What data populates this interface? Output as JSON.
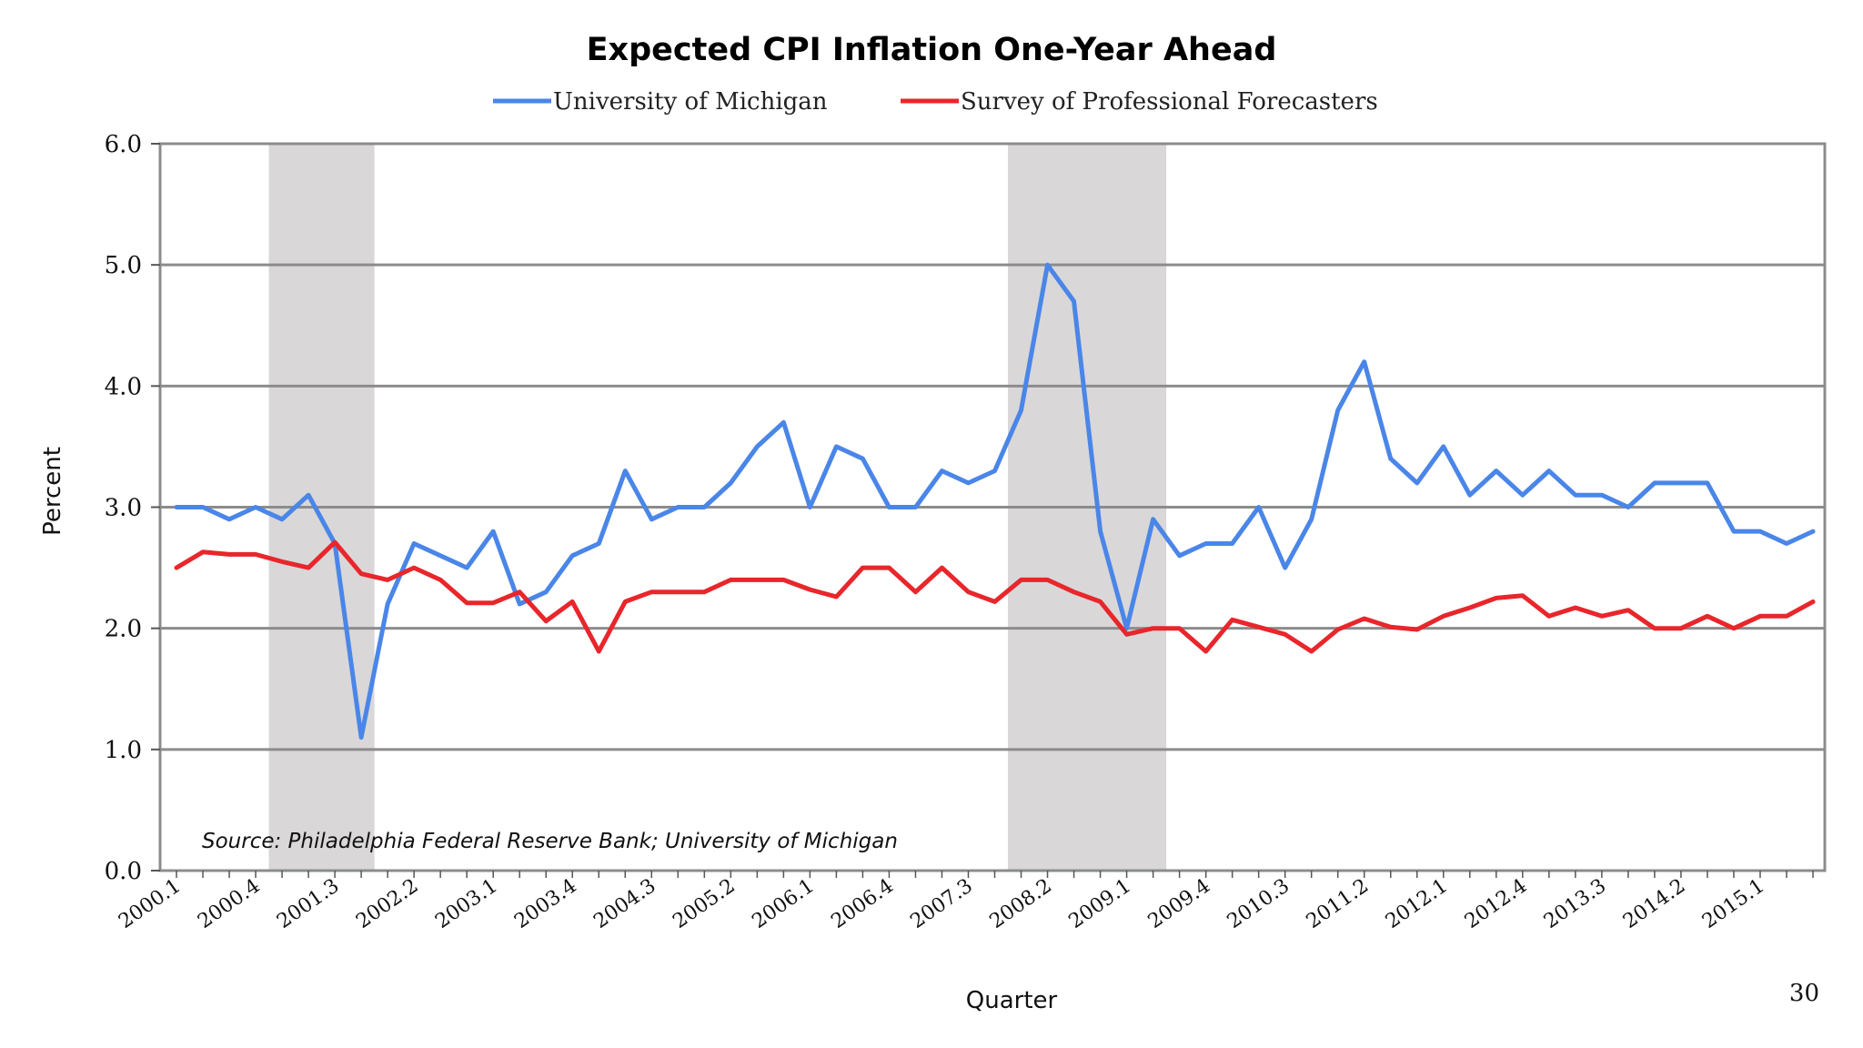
{
  "chart_data": {
    "type": "line",
    "title": "Expected CPI Inflation One-Year Ahead",
    "xlabel": "Quarter",
    "ylabel": "Percent",
    "ylim": [
      0,
      6
    ],
    "yticks": [
      "0.0",
      "1.0",
      "2.0",
      "3.0",
      "4.0",
      "5.0",
      "6.0"
    ],
    "x_tick_labels": [
      "2000.1",
      "2000.4",
      "2001.3",
      "2002.2",
      "2003.1",
      "2003.4",
      "2004.3",
      "2005.2",
      "2006.1",
      "2006.4",
      "2007.3",
      "2008.2",
      "2009.1",
      "2009.4",
      "2010.3",
      "2011.2",
      "2012.1",
      "2012.4",
      "2013.3",
      "2014.2",
      "2015.1"
    ],
    "legend": "top",
    "grid": true,
    "recessions": [
      {
        "start": "2001.1",
        "end": "2001.4"
      },
      {
        "start": "2008.1",
        "end": "2009.2"
      }
    ],
    "annotation": "Source: Philadelphia Federal Reserve Bank; University of Michigan",
    "series": [
      {
        "name": "University of Michigan",
        "color": "#4a86e8",
        "values": [
          3.0,
          3.0,
          2.9,
          3.0,
          2.9,
          3.1,
          2.7,
          1.1,
          2.2,
          2.7,
          2.6,
          2.5,
          2.8,
          2.2,
          2.3,
          2.6,
          2.7,
          3.3,
          2.9,
          3.0,
          3.0,
          3.2,
          3.5,
          3.7,
          3.0,
          3.5,
          3.4,
          3.0,
          3.0,
          3.3,
          3.2,
          3.3,
          3.8,
          5.0,
          4.7,
          2.8,
          2.0,
          2.9,
          2.6,
          2.7,
          2.7,
          3.0,
          2.5,
          2.9,
          3.8,
          4.2,
          3.4,
          3.2,
          3.5,
          3.1,
          3.3,
          3.1,
          3.3,
          3.1,
          3.1,
          3.0,
          3.2,
          3.2,
          3.2,
          2.8,
          2.8,
          2.7,
          2.8
        ]
      },
      {
        "name": "Survey of Professional Forecasters",
        "color": "#e8262b",
        "values": [
          2.5,
          2.63,
          2.61,
          2.61,
          2.55,
          2.5,
          2.71,
          2.45,
          2.4,
          2.5,
          2.4,
          2.21,
          2.21,
          2.3,
          2.06,
          2.22,
          1.81,
          2.22,
          2.3,
          2.3,
          2.3,
          2.4,
          2.4,
          2.4,
          2.32,
          2.26,
          2.5,
          2.5,
          2.3,
          2.5,
          2.3,
          2.22,
          2.4,
          2.4,
          2.3,
          2.22,
          1.95,
          2.0,
          2.0,
          1.81,
          2.07,
          2.01,
          1.95,
          1.81,
          1.99,
          2.08,
          2.01,
          1.99,
          2.1,
          2.17,
          2.25,
          2.27,
          2.1,
          2.17,
          2.1,
          2.15,
          2.0,
          2.0,
          2.1,
          2.0,
          2.1,
          2.1,
          2.22
        ]
      }
    ]
  },
  "page_number": "30"
}
